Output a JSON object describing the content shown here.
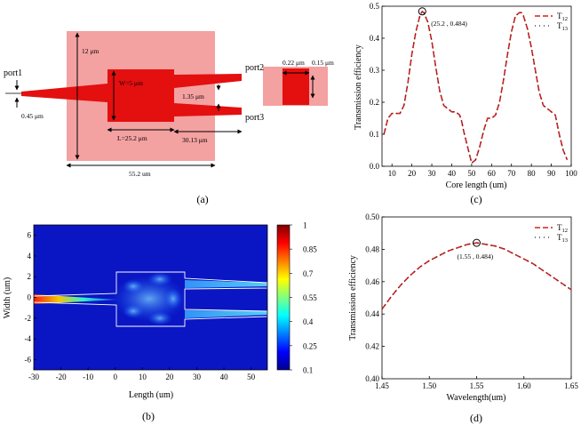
{
  "figure": {
    "panel_a": {
      "label": "(a)",
      "port1": "port1",
      "port2": "port2",
      "port3": "port3",
      "dim_12um": "12 μm",
      "dim_w": "W=5 μm",
      "dim_045": "0.45 μm",
      "dim_L": "L=25.2 μm",
      "dim_3013": "30.13 μm",
      "dim_135": "1.35 μm",
      "dim_552": "55.2 um",
      "dim_022": "0.22 μm",
      "dim_015": "0.15 μm"
    },
    "panel_b": {
      "label": "(b)",
      "colorbar_ticks": [
        "1",
        "0.85",
        "0.7",
        "0.55",
        "0.4",
        "0.25",
        "0.1"
      ]
    },
    "panel_c": {
      "label": "(c)"
    },
    "panel_d": {
      "label": "(d)"
    }
  },
  "chart_data": [
    {
      "id": "b",
      "type": "heatmap",
      "title": "",
      "xlabel": "Length (um)",
      "ylabel": "Width (um)",
      "xlim": [
        -30,
        56
      ],
      "ylim": [
        -7,
        7
      ],
      "xticks": [
        -30,
        -20,
        -10,
        0,
        10,
        20,
        30,
        40,
        50
      ],
      "yticks": [
        6,
        4,
        2,
        0,
        -2,
        -4,
        -6
      ],
      "color_range": [
        0.1,
        1
      ],
      "colormap": "jet"
    },
    {
      "id": "c",
      "type": "line",
      "title": "",
      "xlabel": "Core length (um)",
      "ylabel": "Transmission efficiency",
      "xlim": [
        5,
        100
      ],
      "ylim": [
        0,
        0.5
      ],
      "xticks": [
        10,
        20,
        30,
        40,
        50,
        60,
        70,
        80,
        90,
        100
      ],
      "yticks": [
        0.0,
        0.1,
        0.2,
        0.3,
        0.4,
        0.5
      ],
      "x": [
        6,
        8,
        10,
        12,
        14,
        16,
        18,
        20,
        22,
        24,
        25.2,
        26,
        28,
        30,
        32,
        34,
        36,
        38,
        40,
        42,
        44,
        45,
        46,
        48,
        50,
        52,
        54,
        56,
        58,
        60,
        62,
        64,
        66,
        68,
        70,
        72,
        74,
        75,
        76,
        78,
        80,
        82,
        84,
        86,
        88,
        90,
        92,
        94,
        96,
        98
      ],
      "series": [
        {
          "name": "T12",
          "values": [
            0.1,
            0.15,
            0.165,
            0.165,
            0.165,
            0.19,
            0.26,
            0.35,
            0.42,
            0.47,
            0.484,
            0.48,
            0.45,
            0.39,
            0.31,
            0.235,
            0.19,
            0.18,
            0.17,
            0.17,
            0.16,
            0.14,
            0.11,
            0.06,
            0.01,
            0.02,
            0.06,
            0.11,
            0.15,
            0.15,
            0.16,
            0.2,
            0.27,
            0.35,
            0.42,
            0.47,
            0.48,
            0.48,
            0.47,
            0.43,
            0.37,
            0.3,
            0.23,
            0.19,
            0.18,
            0.17,
            0.16,
            0.1,
            0.05,
            0.02
          ]
        },
        {
          "name": "T13",
          "values": [
            0.1,
            0.15,
            0.165,
            0.165,
            0.165,
            0.19,
            0.26,
            0.35,
            0.42,
            0.47,
            0.484,
            0.48,
            0.45,
            0.39,
            0.31,
            0.235,
            0.19,
            0.18,
            0.17,
            0.17,
            0.16,
            0.14,
            0.11,
            0.06,
            0.01,
            0.02,
            0.06,
            0.11,
            0.15,
            0.15,
            0.16,
            0.2,
            0.27,
            0.35,
            0.42,
            0.47,
            0.48,
            0.48,
            0.47,
            0.43,
            0.37,
            0.3,
            0.23,
            0.19,
            0.18,
            0.17,
            0.16,
            0.1,
            0.05,
            0.02
          ]
        }
      ],
      "legend": [
        "T12",
        "T13"
      ],
      "legend_labels": [
        {
          "main": "T",
          "sub": "12"
        },
        {
          "main": "T",
          "sub": "13"
        }
      ],
      "annotation": {
        "x": 25.2,
        "y": 0.484,
        "text": "(25.2 , 0.484)"
      }
    },
    {
      "id": "d",
      "type": "line",
      "title": "",
      "xlabel": "Wavelength(um)",
      "ylabel": "Transmission efficiency",
      "xlim": [
        1.45,
        1.65
      ],
      "ylim": [
        0.4,
        0.5
      ],
      "xticks": [
        1.45,
        1.5,
        1.55,
        1.6,
        1.65
      ],
      "yticks": [
        0.4,
        0.42,
        0.44,
        0.46,
        0.48,
        0.5
      ],
      "x": [
        1.45,
        1.46,
        1.47,
        1.48,
        1.49,
        1.5,
        1.51,
        1.52,
        1.53,
        1.54,
        1.55,
        1.56,
        1.57,
        1.58,
        1.59,
        1.6,
        1.61,
        1.62,
        1.63,
        1.64,
        1.65
      ],
      "series": [
        {
          "name": "T12",
          "values": [
            0.443,
            0.451,
            0.458,
            0.464,
            0.469,
            0.473,
            0.476,
            0.479,
            0.481,
            0.483,
            0.484,
            0.483,
            0.482,
            0.48,
            0.477,
            0.474,
            0.471,
            0.467,
            0.463,
            0.459,
            0.455
          ]
        },
        {
          "name": "T13",
          "values": [
            0.443,
            0.451,
            0.458,
            0.464,
            0.469,
            0.473,
            0.476,
            0.479,
            0.481,
            0.483,
            0.484,
            0.483,
            0.482,
            0.48,
            0.477,
            0.474,
            0.471,
            0.467,
            0.463,
            0.459,
            0.455
          ]
        }
      ],
      "legend": [
        "T12",
        "T13"
      ],
      "legend_labels": [
        {
          "main": "T",
          "sub": "12"
        },
        {
          "main": "T",
          "sub": "13"
        }
      ],
      "annotation": {
        "x": 1.55,
        "y": 0.484,
        "text": "(1.55 , 0.484)"
      }
    }
  ],
  "colors": {
    "series_line": "#d62020",
    "series_dot": "#222222",
    "device_light": "#f4a1a1",
    "device_core": "#e40f0f"
  }
}
